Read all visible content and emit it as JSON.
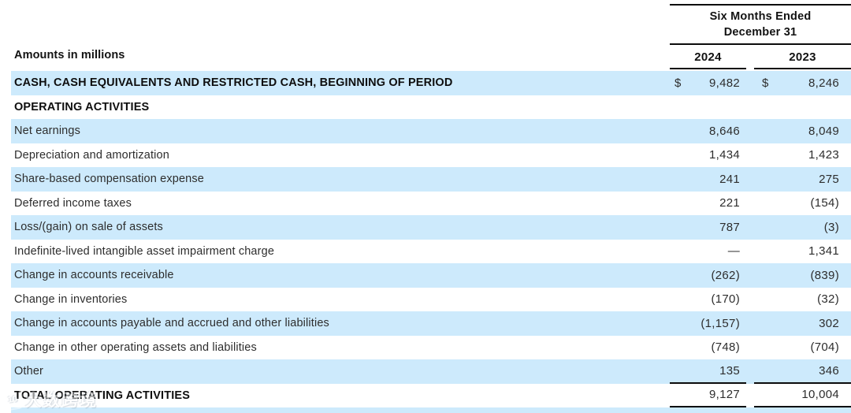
{
  "header": {
    "amounts_label": "Amounts in millions",
    "period_line1": "Six Months Ended",
    "period_line2": "December 31",
    "col_2024": "2024",
    "col_2023": "2023"
  },
  "rows": [
    {
      "label": "CASH, CASH EQUIVALENTS AND RESTRICTED CASH, BEGINNING OF PERIOD",
      "cur": "$",
      "v2024": "9,482",
      "v2023": "8,246"
    },
    {
      "label": "OPERATING ACTIVITIES",
      "cur": "",
      "v2024": "",
      "v2023": ""
    },
    {
      "label": "Net earnings",
      "cur": "",
      "v2024": "8,646",
      "v2023": "8,049"
    },
    {
      "label": "Depreciation and amortization",
      "cur": "",
      "v2024": "1,434",
      "v2023": "1,423"
    },
    {
      "label": "Share-based compensation expense",
      "cur": "",
      "v2024": "241",
      "v2023": "275"
    },
    {
      "label": "Deferred income taxes",
      "cur": "",
      "v2024": "221",
      "v2023": "(154)"
    },
    {
      "label": "Loss/(gain) on sale of assets",
      "cur": "",
      "v2024": "787",
      "v2023": "(3)"
    },
    {
      "label": "Indefinite-lived intangible asset impairment charge",
      "cur": "",
      "v2024": "—",
      "v2023": "1,341"
    },
    {
      "label": "Change in accounts receivable",
      "cur": "",
      "v2024": "(262)",
      "v2023": "(839)"
    },
    {
      "label": "Change in inventories",
      "cur": "",
      "v2024": "(170)",
      "v2023": "(32)"
    },
    {
      "label": "Change in accounts payable and accrued and other liabilities",
      "cur": "",
      "v2024": "(1,157)",
      "v2023": "302"
    },
    {
      "label": "Change in other operating assets and liabilities",
      "cur": "",
      "v2024": "(748)",
      "v2023": "(704)"
    },
    {
      "label": "Other",
      "cur": "",
      "v2024": "135",
      "v2023": "346"
    },
    {
      "label": "TOTAL OPERATING ACTIVITIES",
      "cur": "",
      "v2024": "9,127",
      "v2023": "10,004"
    }
  ],
  "watermark": {
    "logo": "10",
    "text": "大数跨境"
  },
  "colors": {
    "highlight": "#cdeafc",
    "rule": "#0c0c0c",
    "text": "#2d2d2d"
  }
}
